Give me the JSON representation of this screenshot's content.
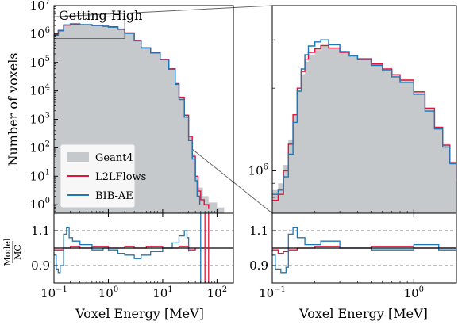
{
  "chart_data": {
    "type": "step-histogram",
    "title": "Getting High",
    "xlabel": "Voxel Energy [MeV]",
    "ylabel": "Number of voxels",
    "ratio_ylabel_top": "Model",
    "ratio_ylabel_bottom": "MC",
    "colors": {
      "geant4": "#c5c9cc",
      "l2lflows": "#e0143c",
      "bibae": "#1f77b4",
      "axis": "#000000",
      "dashed": "#808080"
    },
    "legend": {
      "placement": "lower-left",
      "entries": [
        "Geant4",
        "L2LFlows",
        "BIB-AE"
      ]
    },
    "main": {
      "xscale": "log",
      "yscale": "log",
      "xlim": [
        0.1,
        200
      ],
      "ylim": [
        0.5,
        10000000
      ],
      "xticks": [
        {
          "v": 0.1,
          "label": "10^-1"
        },
        {
          "v": 1,
          "label": "10^0"
        },
        {
          "v": 10,
          "label": "10^1"
        },
        {
          "v": 100,
          "label": "10^2"
        }
      ],
      "yticks": [
        {
          "v": 1,
          "label": "10^0"
        },
        {
          "v": 10,
          "label": "10^1"
        },
        {
          "v": 100,
          "label": "10^2"
        },
        {
          "v": 1000,
          "label": "10^3"
        },
        {
          "v": 10000,
          "label": "10^4"
        },
        {
          "v": 100000,
          "label": "10^5"
        },
        {
          "v": 1000000,
          "label": "10^6"
        },
        {
          "v": 10000000,
          "label": "10^7"
        }
      ],
      "series": [
        {
          "name": "Geant4",
          "style": "fill",
          "points": [
            [
              0.1,
              1100000
            ],
            [
              0.12,
              1400000
            ],
            [
              0.15,
              2000000
            ],
            [
              0.2,
              2200000
            ],
            [
              0.3,
              2100000
            ],
            [
              0.5,
              2000000
            ],
            [
              0.8,
              1900000
            ],
            [
              1,
              1800000
            ],
            [
              1.5,
              1500000
            ],
            [
              2,
              1100000
            ],
            [
              3,
              600000
            ],
            [
              4,
              330000
            ],
            [
              6,
              220000
            ],
            [
              9,
              130000
            ],
            [
              13,
              60000
            ],
            [
              17,
              18000
            ],
            [
              20,
              6000
            ],
            [
              25,
              1500
            ],
            [
              30,
              250
            ],
            [
              35,
              60
            ],
            [
              40,
              10
            ],
            [
              45,
              4
            ],
            [
              55,
              2
            ],
            [
              70,
              1.2
            ],
            [
              100,
              0.8
            ],
            [
              135,
              0.7
            ]
          ]
        },
        {
          "name": "L2LFlows",
          "style": "line",
          "points": [
            [
              0.1,
              1000000
            ],
            [
              0.12,
              1350000
            ],
            [
              0.15,
              2050000
            ],
            [
              0.2,
              2200000
            ],
            [
              0.3,
              2100000
            ],
            [
              0.5,
              2000000
            ],
            [
              0.8,
              1900000
            ],
            [
              1,
              1800000
            ],
            [
              1.5,
              1500000
            ],
            [
              2,
              1100000
            ],
            [
              3,
              600000
            ],
            [
              4,
              330000
            ],
            [
              6,
              220000
            ],
            [
              9,
              130000
            ],
            [
              13,
              60000
            ],
            [
              17,
              18000
            ],
            [
              20,
              6000
            ],
            [
              25,
              1400
            ],
            [
              30,
              250
            ],
            [
              35,
              50
            ],
            [
              40,
              10
            ],
            [
              45,
              3
            ],
            [
              50,
              1.5
            ],
            [
              58,
              1
            ],
            [
              70,
              0.7
            ]
          ]
        },
        {
          "name": "BIB-AE",
          "style": "line",
          "points": [
            [
              0.1,
              900000
            ],
            [
              0.12,
              1300000
            ],
            [
              0.15,
              2100000
            ],
            [
              0.2,
              2300000
            ],
            [
              0.3,
              2150000
            ],
            [
              0.5,
              2000000
            ],
            [
              0.8,
              1880000
            ],
            [
              1,
              1750000
            ],
            [
              1.5,
              1450000
            ],
            [
              2,
              1050000
            ],
            [
              3,
              580000
            ],
            [
              4,
              320000
            ],
            [
              6,
              215000
            ],
            [
              9,
              125000
            ],
            [
              13,
              58000
            ],
            [
              17,
              17000
            ],
            [
              20,
              5000
            ],
            [
              25,
              1200
            ],
            [
              30,
              180
            ],
            [
              35,
              40
            ],
            [
              40,
              7
            ],
            [
              43,
              2
            ],
            [
              48,
              1
            ]
          ]
        }
      ],
      "inset_box": {
        "x": [
          0.1,
          2
        ],
        "y": [
          700000,
          4000000
        ]
      }
    },
    "zoom": {
      "xscale": "log",
      "yscale": "log",
      "xlim": [
        0.1,
        2
      ],
      "ylim": [
        700000,
        4000000
      ],
      "xticks": [
        {
          "v": 0.1,
          "label": "10^-1"
        },
        {
          "v": 1,
          "label": "10^0"
        }
      ],
      "yticks": [
        {
          "v": 1000000,
          "label": "10^6"
        }
      ],
      "series": [
        {
          "name": "Geant4",
          "style": "fill",
          "points": [
            [
              0.1,
              850000
            ],
            [
              0.11,
              900000
            ],
            [
              0.12,
              1050000
            ],
            [
              0.13,
              1300000
            ],
            [
              0.14,
              1600000
            ],
            [
              0.15,
              1950000
            ],
            [
              0.16,
              2250000
            ],
            [
              0.17,
              2500000
            ],
            [
              0.18,
              2650000
            ],
            [
              0.2,
              2750000
            ],
            [
              0.22,
              2850000
            ],
            [
              0.25,
              2800000
            ],
            [
              0.3,
              2700000
            ],
            [
              0.35,
              2620000
            ],
            [
              0.4,
              2550000
            ],
            [
              0.5,
              2450000
            ],
            [
              0.6,
              2350000
            ],
            [
              0.7,
              2250000
            ],
            [
              0.8,
              2150000
            ],
            [
              1,
              1950000
            ],
            [
              1.2,
              1700000
            ],
            [
              1.4,
              1450000
            ],
            [
              1.6,
              1250000
            ],
            [
              1.8,
              1080000
            ],
            [
              2,
              950000
            ]
          ]
        },
        {
          "name": "L2LFlows",
          "style": "line",
          "points": [
            [
              0.1,
              780000
            ],
            [
              0.11,
              820000
            ],
            [
              0.12,
              1000000
            ],
            [
              0.13,
              1250000
            ],
            [
              0.14,
              1600000
            ],
            [
              0.15,
              2000000
            ],
            [
              0.16,
              2300000
            ],
            [
              0.17,
              2550000
            ],
            [
              0.18,
              2700000
            ],
            [
              0.2,
              2780000
            ],
            [
              0.22,
              2860000
            ],
            [
              0.25,
              2800000
            ],
            [
              0.3,
              2700000
            ],
            [
              0.35,
              2630000
            ],
            [
              0.4,
              2560000
            ],
            [
              0.5,
              2450000
            ],
            [
              0.6,
              2350000
            ],
            [
              0.7,
              2240000
            ],
            [
              0.8,
              2140000
            ],
            [
              1,
              1940000
            ],
            [
              1.2,
              1690000
            ],
            [
              1.4,
              1440000
            ],
            [
              1.6,
              1240000
            ],
            [
              1.8,
              1070000
            ],
            [
              2,
              940000
            ]
          ]
        },
        {
          "name": "BIB-AE",
          "style": "line",
          "points": [
            [
              0.1,
              820000
            ],
            [
              0.11,
              850000
            ],
            [
              0.12,
              950000
            ],
            [
              0.13,
              1150000
            ],
            [
              0.14,
              1500000
            ],
            [
              0.15,
              1950000
            ],
            [
              0.16,
              2350000
            ],
            [
              0.17,
              2650000
            ],
            [
              0.18,
              2850000
            ],
            [
              0.2,
              2950000
            ],
            [
              0.22,
              3000000
            ],
            [
              0.25,
              2880000
            ],
            [
              0.3,
              2720000
            ],
            [
              0.35,
              2620000
            ],
            [
              0.4,
              2540000
            ],
            [
              0.5,
              2420000
            ],
            [
              0.6,
              2320000
            ],
            [
              0.7,
              2200000
            ],
            [
              0.8,
              2100000
            ],
            [
              1,
              1900000
            ],
            [
              1.2,
              1650000
            ],
            [
              1.4,
              1420000
            ],
            [
              1.6,
              1220000
            ],
            [
              1.8,
              1060000
            ],
            [
              2,
              930000
            ]
          ]
        }
      ]
    },
    "ratio_main": {
      "xscale": "log",
      "xlim": [
        0.1,
        200
      ],
      "ylim": [
        0.8,
        1.2
      ],
      "yticks": [
        {
          "v": 0.9,
          "label": "0.9"
        },
        {
          "v": 1.1,
          "label": "1.1"
        }
      ],
      "refline": 1.0,
      "dashed": [
        0.9,
        1.1
      ],
      "series": [
        {
          "name": "L2LFlows",
          "points": [
            [
              0.1,
              0.99
            ],
            [
              0.12,
              0.99
            ],
            [
              0.15,
              1.0
            ],
            [
              0.2,
              1.01
            ],
            [
              0.3,
              1.0
            ],
            [
              0.5,
              1.01
            ],
            [
              1,
              1.0
            ],
            [
              2,
              1.01
            ],
            [
              3,
              1.0
            ],
            [
              5,
              1.01
            ],
            [
              10,
              1.0
            ],
            [
              20,
              1.01
            ],
            [
              30,
              0.99
            ],
            [
              40,
              1.0
            ]
          ]
        },
        {
          "name": "BIB-AE",
          "points": [
            [
              0.1,
              0.96
            ],
            [
              0.11,
              0.88
            ],
            [
              0.12,
              0.86
            ],
            [
              0.13,
              0.9
            ],
            [
              0.15,
              1.08
            ],
            [
              0.17,
              1.12
            ],
            [
              0.19,
              1.06
            ],
            [
              0.22,
              1.04
            ],
            [
              0.3,
              1.02
            ],
            [
              0.5,
              0.99
            ],
            [
              0.8,
              1.0
            ],
            [
              1,
              0.99
            ],
            [
              1.5,
              0.97
            ],
            [
              2,
              0.96
            ],
            [
              3,
              0.94
            ],
            [
              4,
              0.96
            ],
            [
              6,
              0.98
            ],
            [
              10,
              1.0
            ],
            [
              15,
              1.03
            ],
            [
              20,
              1.07
            ],
            [
              25,
              1.1
            ],
            [
              28,
              1.06
            ],
            [
              30,
              0.98
            ]
          ]
        }
      ],
      "spikes": [
        {
          "series": "L2LFlows",
          "x": 60
        },
        {
          "series": "L2LFlows",
          "x": 70
        },
        {
          "series": "BIB-AE",
          "x": 50
        }
      ]
    },
    "ratio_zoom": {
      "xscale": "log",
      "xlim": [
        0.1,
        2
      ],
      "ylim": [
        0.8,
        1.2
      ],
      "yticks": [
        {
          "v": 0.9,
          "label": "0.9"
        },
        {
          "v": 1.1,
          "label": "1.1"
        }
      ],
      "refline": 1.0,
      "dashed": [
        0.9,
        1.1
      ],
      "series": [
        {
          "name": "L2LFlows",
          "points": [
            [
              0.1,
              0.99
            ],
            [
              0.11,
              0.97
            ],
            [
              0.12,
              0.98
            ],
            [
              0.13,
              0.99
            ],
            [
              0.15,
              1.0
            ],
            [
              0.2,
              1.01
            ],
            [
              0.3,
              1.0
            ],
            [
              0.5,
              1.01
            ],
            [
              1,
              1.0
            ],
            [
              2,
              1.01
            ]
          ]
        },
        {
          "name": "BIB-AE",
          "points": [
            [
              0.1,
              0.96
            ],
            [
              0.105,
              0.88
            ],
            [
              0.115,
              0.86
            ],
            [
              0.125,
              0.89
            ],
            [
              0.13,
              1.08
            ],
            [
              0.14,
              1.12
            ],
            [
              0.15,
              1.06
            ],
            [
              0.17,
              1.02
            ],
            [
              0.22,
              1.04
            ],
            [
              0.3,
              1.0
            ],
            [
              0.5,
              0.99
            ],
            [
              1,
              1.02
            ],
            [
              1.5,
              0.99
            ],
            [
              2,
              0.98
            ]
          ]
        }
      ]
    }
  }
}
